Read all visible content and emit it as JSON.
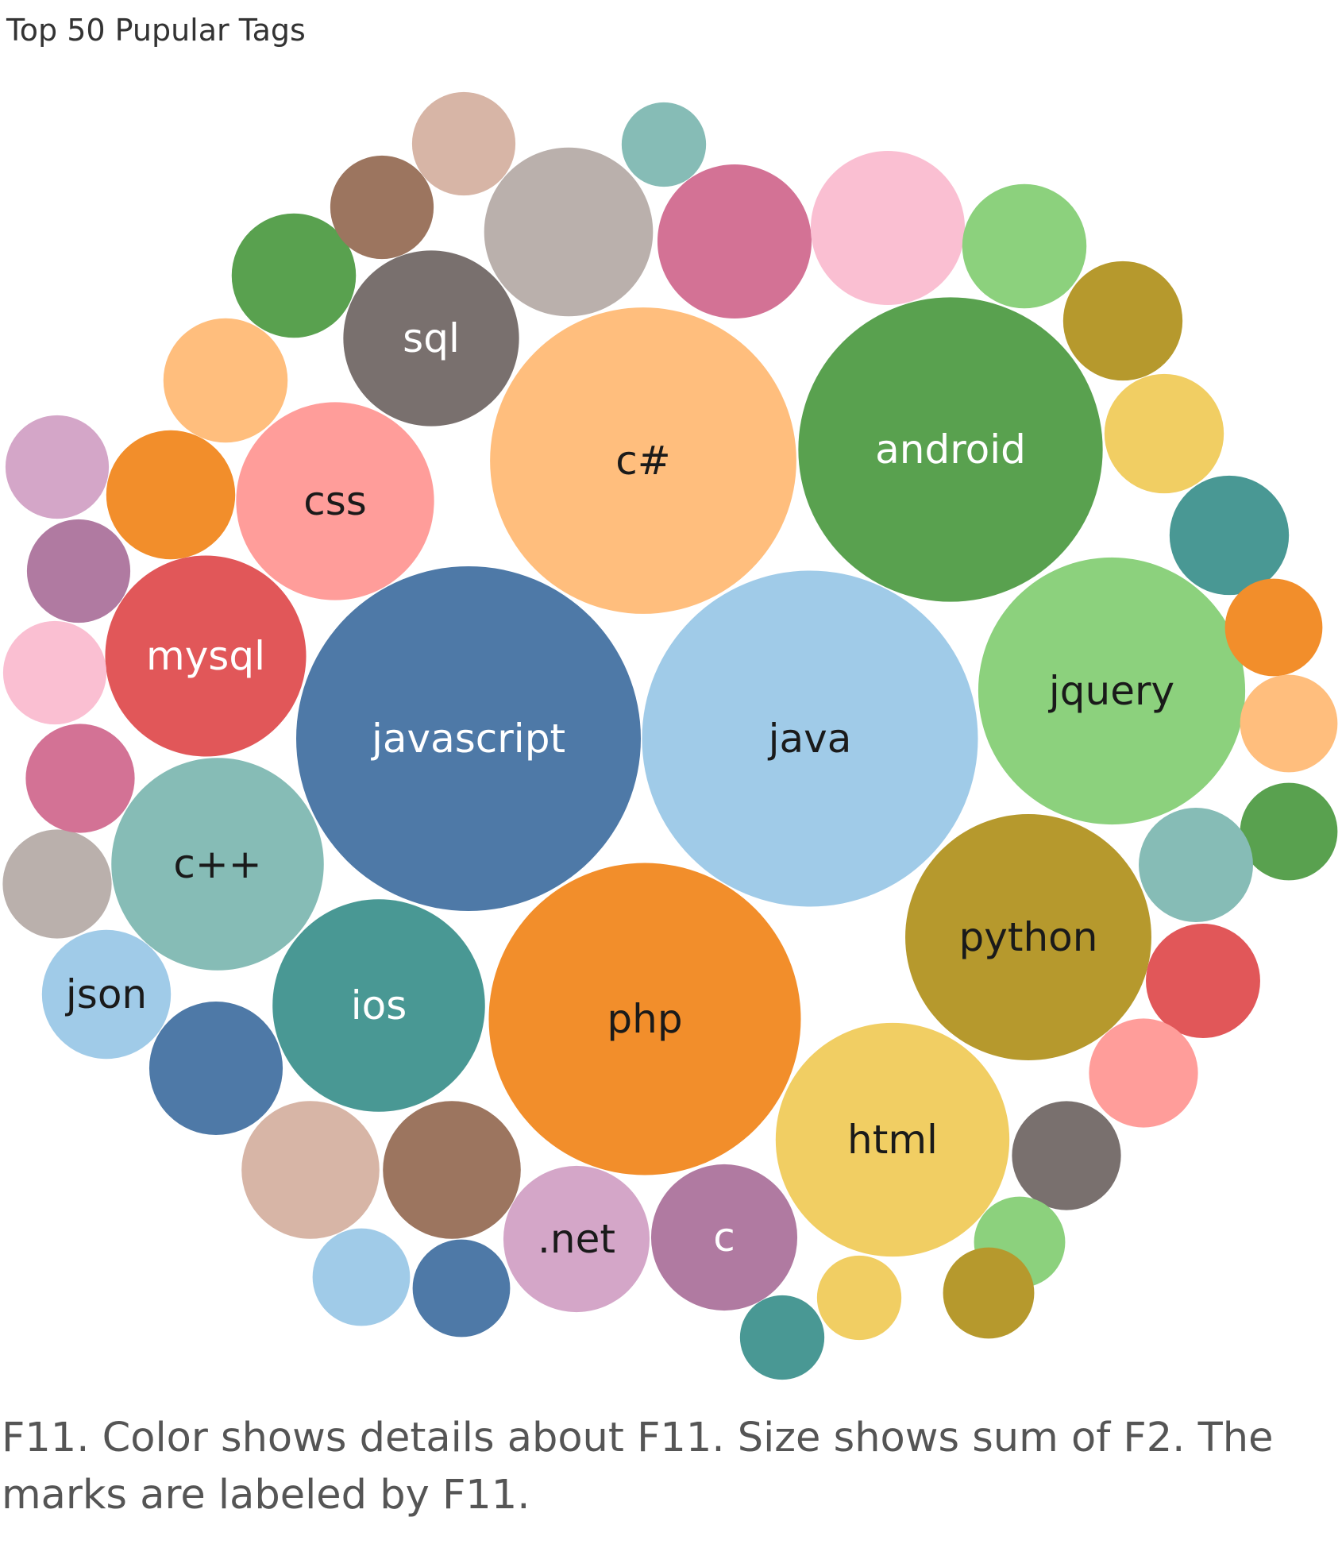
{
  "chart_data": {
    "type": "packed-bubble",
    "title": "Top 50 Pupular Tags",
    "caption": "F11.  Color shows details about F11.  Size shows sum of F2.  The marks are labeled by F11.",
    "bubbles": [
      {
        "label": "javascript",
        "color": "#4e79a7",
        "value": 100,
        "label_color": "#ffffff"
      },
      {
        "label": "java",
        "color": "#a0cbe8",
        "value": 95,
        "label_color": "#1a1a1a"
      },
      {
        "label": "c#",
        "color": "#ffbe7d",
        "value": 79,
        "label_color": "#1a1a1a"
      },
      {
        "label": "php",
        "color": "#f28e2b",
        "value": 82,
        "label_color": "#1a1a1a"
      },
      {
        "label": "android",
        "color": "#59a14f",
        "value": 78,
        "label_color": "#ffffff"
      },
      {
        "label": "jquery",
        "color": "#8cd17d",
        "value": 60,
        "label_color": "#1a1a1a"
      },
      {
        "label": "python",
        "color": "#b6992d",
        "value": 51,
        "label_color": "#1a1a1a"
      },
      {
        "label": "html",
        "color": "#f1ce63",
        "value": 46,
        "label_color": "#1a1a1a"
      },
      {
        "label": "c++",
        "color": "#86bcb6",
        "value": 38,
        "label_color": "#1a1a1a"
      },
      {
        "label": "ios",
        "color": "#499894",
        "value": 38,
        "label_color": "#ffffff"
      },
      {
        "label": "mysql",
        "color": "#e15759",
        "value": 34,
        "label_color": "#ffffff"
      },
      {
        "label": "css",
        "color": "#ff9d9a",
        "value": 33,
        "label_color": "#1a1a1a"
      },
      {
        "label": "sql",
        "color": "#79706e",
        "value": 26,
        "label_color": "#ffffff"
      },
      {
        "label": ".net",
        "color": "#d4a6c8",
        "value": 18,
        "label_color": "#1a1a1a"
      },
      {
        "label": "c",
        "color": "#b07aa1",
        "value": 18,
        "label_color": "#ffffff"
      },
      {
        "label": "json",
        "color": "#a0cbe8",
        "value": 14,
        "label_color": "#1a1a1a"
      },
      {
        "label": "",
        "color": "#bab0ac",
        "value": 24
      },
      {
        "label": "",
        "color": "#d37295",
        "value": 20
      },
      {
        "label": "",
        "color": "#fabfd2",
        "value": 20
      },
      {
        "label": "",
        "color": "#8cd17d",
        "value": 13
      },
      {
        "label": "",
        "color": "#b6992d",
        "value": 12
      },
      {
        "label": "",
        "color": "#f1ce63",
        "value": 12
      },
      {
        "label": "",
        "color": "#499894",
        "value": 12
      },
      {
        "label": "",
        "color": "#f28e2b",
        "value": 8
      },
      {
        "label": "",
        "color": "#ffbe7d",
        "value": 8
      },
      {
        "label": "",
        "color": "#59a14f",
        "value": 8
      },
      {
        "label": "",
        "color": "#86bcb6",
        "value": 11
      },
      {
        "label": "",
        "color": "#e15759",
        "value": 11
      },
      {
        "label": "",
        "color": "#ff9d9a",
        "value": 10
      },
      {
        "label": "",
        "color": "#79706e",
        "value": 10
      },
      {
        "label": "",
        "color": "#8cd17d",
        "value": 7
      },
      {
        "label": "",
        "color": "#b6992d",
        "value": 7
      },
      {
        "label": "",
        "color": "#f1ce63",
        "value": 6
      },
      {
        "label": "",
        "color": "#499894",
        "value": 6
      },
      {
        "label": "",
        "color": "#9c755f",
        "value": 16
      },
      {
        "label": "",
        "color": "#d7b5a6",
        "value": 16
      },
      {
        "label": "",
        "color": "#4e79a7",
        "value": 8
      },
      {
        "label": "",
        "color": "#a0cbe8",
        "value": 8
      },
      {
        "label": "",
        "color": "#4e79a7",
        "value": 15
      },
      {
        "label": "",
        "color": "#bab0ac",
        "value": 10
      },
      {
        "label": "",
        "color": "#d37295",
        "value": 10
      },
      {
        "label": "",
        "color": "#fabfd2",
        "value": 9
      },
      {
        "label": "",
        "color": "#b07aa1",
        "value": 9
      },
      {
        "label": "",
        "color": "#d4a6c8",
        "value": 9
      },
      {
        "label": "",
        "color": "#f28e2b",
        "value": 14
      },
      {
        "label": "",
        "color": "#ffbe7d",
        "value": 13
      },
      {
        "label": "",
        "color": "#59a14f",
        "value": 13
      },
      {
        "label": "",
        "color": "#9c755f",
        "value": 9
      },
      {
        "label": "",
        "color": "#d7b5a6",
        "value": 9
      },
      {
        "label": "",
        "color": "#86bcb6",
        "value": 6
      }
    ]
  }
}
